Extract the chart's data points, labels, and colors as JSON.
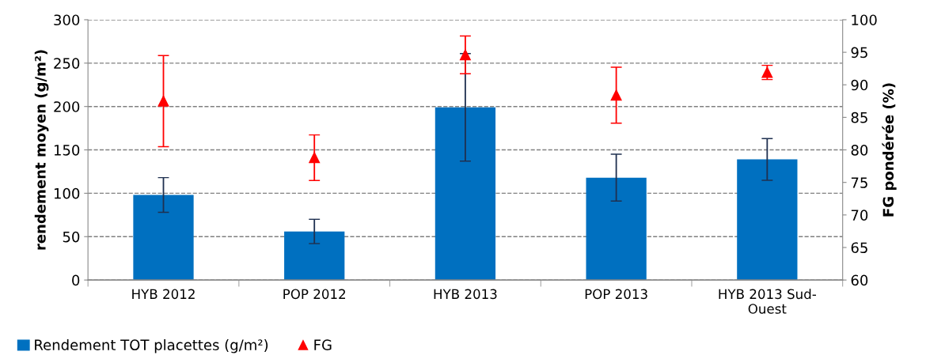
{
  "chart_data": {
    "type": "bar",
    "categories": [
      "HYB 2012",
      "POP 2012",
      "HYB 2013",
      "POP 2013",
      "HYB 2013 Sud-\nOuest"
    ],
    "ylabel": "rendement moyen (g/m²)",
    "y2label": "FG pondérée (%)",
    "ylim": [
      0,
      300
    ],
    "yticks": [
      0,
      50,
      100,
      150,
      200,
      250,
      300
    ],
    "y2lim": [
      60,
      100
    ],
    "y2ticks": [
      60,
      65,
      70,
      75,
      80,
      85,
      90,
      95,
      100
    ],
    "grid": "y",
    "legend": "bottom left",
    "series": [
      {
        "name": "Rendement TOT placettes (g/m²)",
        "color": "#0070c0",
        "values": [
          98,
          56,
          199,
          118,
          139
        ],
        "errors": [
          20,
          14,
          62,
          27,
          24
        ]
      },
      {
        "name": "FG",
        "type": "scatter",
        "axis": "y2",
        "color": "#ff0000",
        "marker": "triangle",
        "values": [
          87.5,
          78.8,
          94.6,
          88.4,
          91.9
        ],
        "errors": [
          7,
          3.5,
          2.9,
          4.3,
          1.1
        ]
      }
    ]
  }
}
